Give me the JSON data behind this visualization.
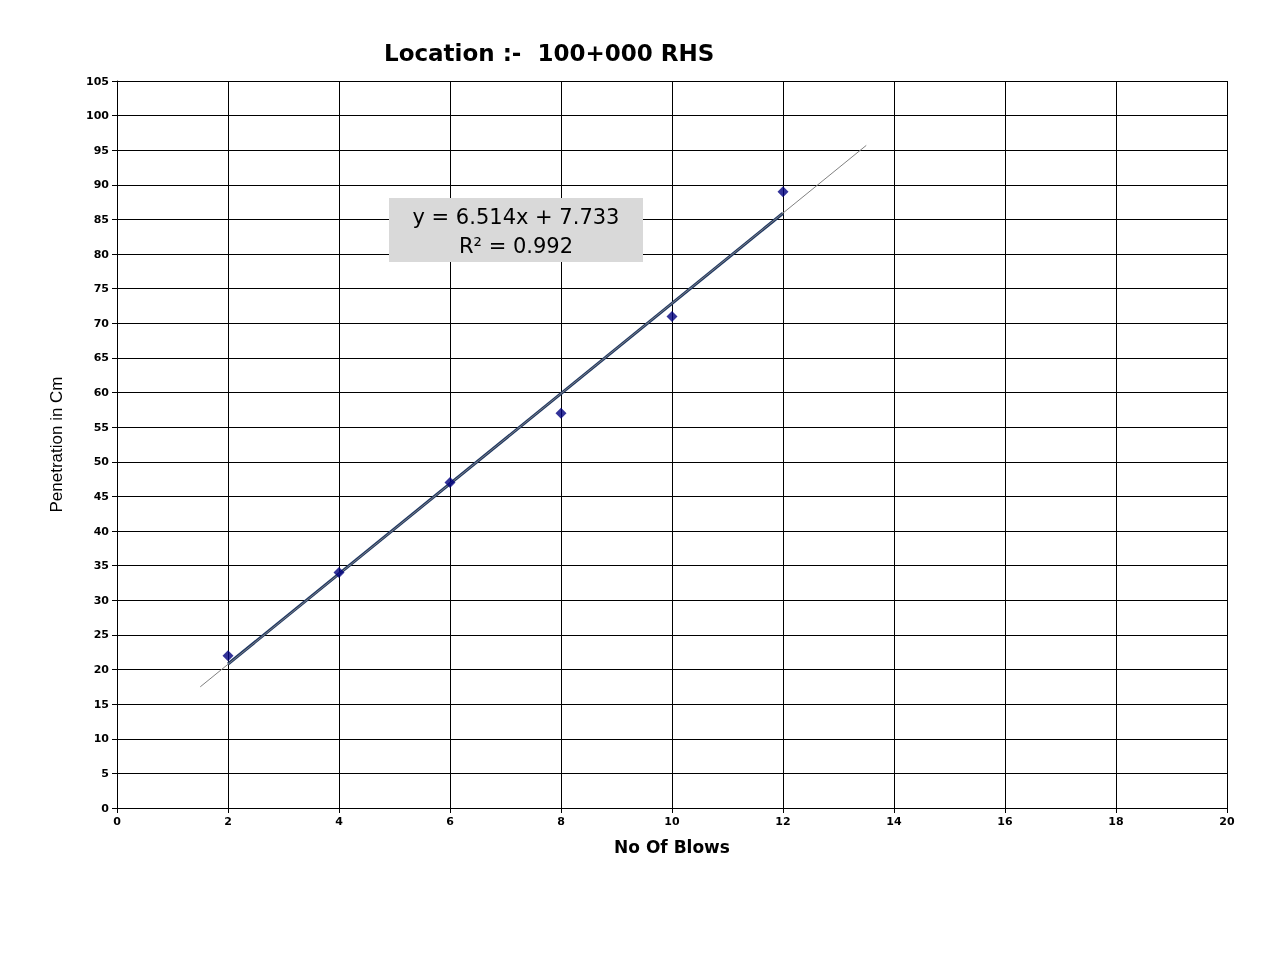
{
  "chart_data": {
    "type": "scatter",
    "title": "Location :-  100+000 RHS",
    "xlabel": "No Of Blows",
    "ylabel": "Penetration in Cm",
    "series": [
      {
        "color": "#000080",
        "marker": "diamond",
        "x": [
          2,
          4,
          6,
          8,
          10,
          12
        ],
        "values": [
          22,
          34,
          47,
          57,
          71,
          89
        ]
      },
      {
        "type": "line",
        "marker": "none",
        "color": "#1f3864",
        "x": [
          2,
          12
        ],
        "values": [
          20.8,
          85.9
        ]
      },
      {
        "type": "line",
        "marker": "none",
        "color": "#808080",
        "x": [
          1.5,
          13.5
        ],
        "values": [
          17.5,
          95.7
        ]
      }
    ],
    "annotations": [
      "y = 6.514x + 7.733",
      "R² = 0.992"
    ],
    "xlim": [
      0,
      20
    ],
    "xticks": [
      0,
      2,
      4,
      6,
      8,
      10,
      12,
      14,
      16,
      18,
      20
    ],
    "ylim": [
      0,
      105
    ],
    "yticks": [
      0,
      5,
      10,
      15,
      20,
      25,
      30,
      35,
      40,
      45,
      50,
      55,
      60,
      65,
      70,
      75,
      80,
      85,
      90,
      95,
      100,
      105
    ],
    "grid": true
  }
}
